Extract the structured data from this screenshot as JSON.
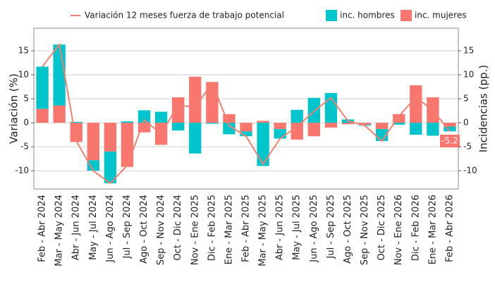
{
  "chart_data": {
    "type": "bar",
    "categories": [
      "Feb - Abr 2024",
      "Mar - May 2024",
      "Abr - Jun 2024",
      "May - Jul 2024",
      "Jun - Ago 2024",
      "Jul - Sep 2024",
      "Ago - Oct 2024",
      "Sep - Nov 2024",
      "Oct - Dic 2024",
      "Nov - Ene 2025",
      "Dic - Feb 2025",
      "Ene - Mar 2025",
      "Feb - Abr 2025",
      "Mar - May 2025",
      "Abr - Jun 2025",
      "May - Jul 2025",
      "Jun - Ago 2025",
      "Jul - Sep 2025",
      "Ago - Oct 2025",
      "Sep - Nov 2025",
      "Oct - Dic 2025",
      "Nov - Ene 2026",
      "Dic - Feb 2026",
      "Ene - Mar 2026",
      "Feb - Abr 2026"
    ],
    "series": [
      {
        "name": "Variación 12 meses fuerza de trabajo potencial",
        "type": "line",
        "color": "#f08070",
        "values": [
          11.7,
          16.3,
          -3.8,
          -10,
          -12.6,
          -8.9,
          0.6,
          -2.3,
          3.7,
          3.2,
          8.3,
          -0.6,
          -2.8,
          -8.6,
          -3.3,
          -0.8,
          2.4,
          5.2,
          0.4,
          -0.6,
          -3.8,
          1.4,
          5.3,
          2.6,
          -1.8
        ]
      },
      {
        "name": "inc. hombres",
        "type": "bar",
        "axis": "y2",
        "color": "#00c5cd",
        "values": [
          8.8,
          12.7,
          0.2,
          -2.2,
          -6.6,
          0.3,
          2.6,
          2.3,
          -1.6,
          -6.4,
          -0.2,
          -2.4,
          -1,
          -9,
          -2,
          2.7,
          5.2,
          6.2,
          0.7,
          -0.2,
          -2.5,
          -0.4,
          -2.5,
          -2.7,
          -1
        ]
      },
      {
        "name": "inc. mujeres",
        "type": "bar",
        "axis": "y2",
        "color": "#f8766d",
        "values": [
          2.9,
          3.6,
          -4,
          -7.8,
          -6,
          -9.2,
          -2,
          -4.6,
          5.3,
          9.6,
          8.5,
          1.8,
          -1.8,
          0.4,
          -1.3,
          -3.5,
          -2.8,
          -1,
          -0.3,
          -0.4,
          -1.3,
          1.8,
          7.8,
          5.3,
          -0.8
        ]
      }
    ],
    "ylabel": "Variación (%)",
    "y2label": "Incidencias (pp.)",
    "ylim": [
      -13.8,
      19.7
    ],
    "yticks": [
      -10,
      -5,
      0,
      5,
      10,
      15
    ],
    "y2lim": [
      -13.8,
      19.7
    ],
    "y2ticks": [
      -10,
      -5,
      0,
      5,
      10,
      15
    ],
    "annotation": "-5.2",
    "grid": true
  }
}
